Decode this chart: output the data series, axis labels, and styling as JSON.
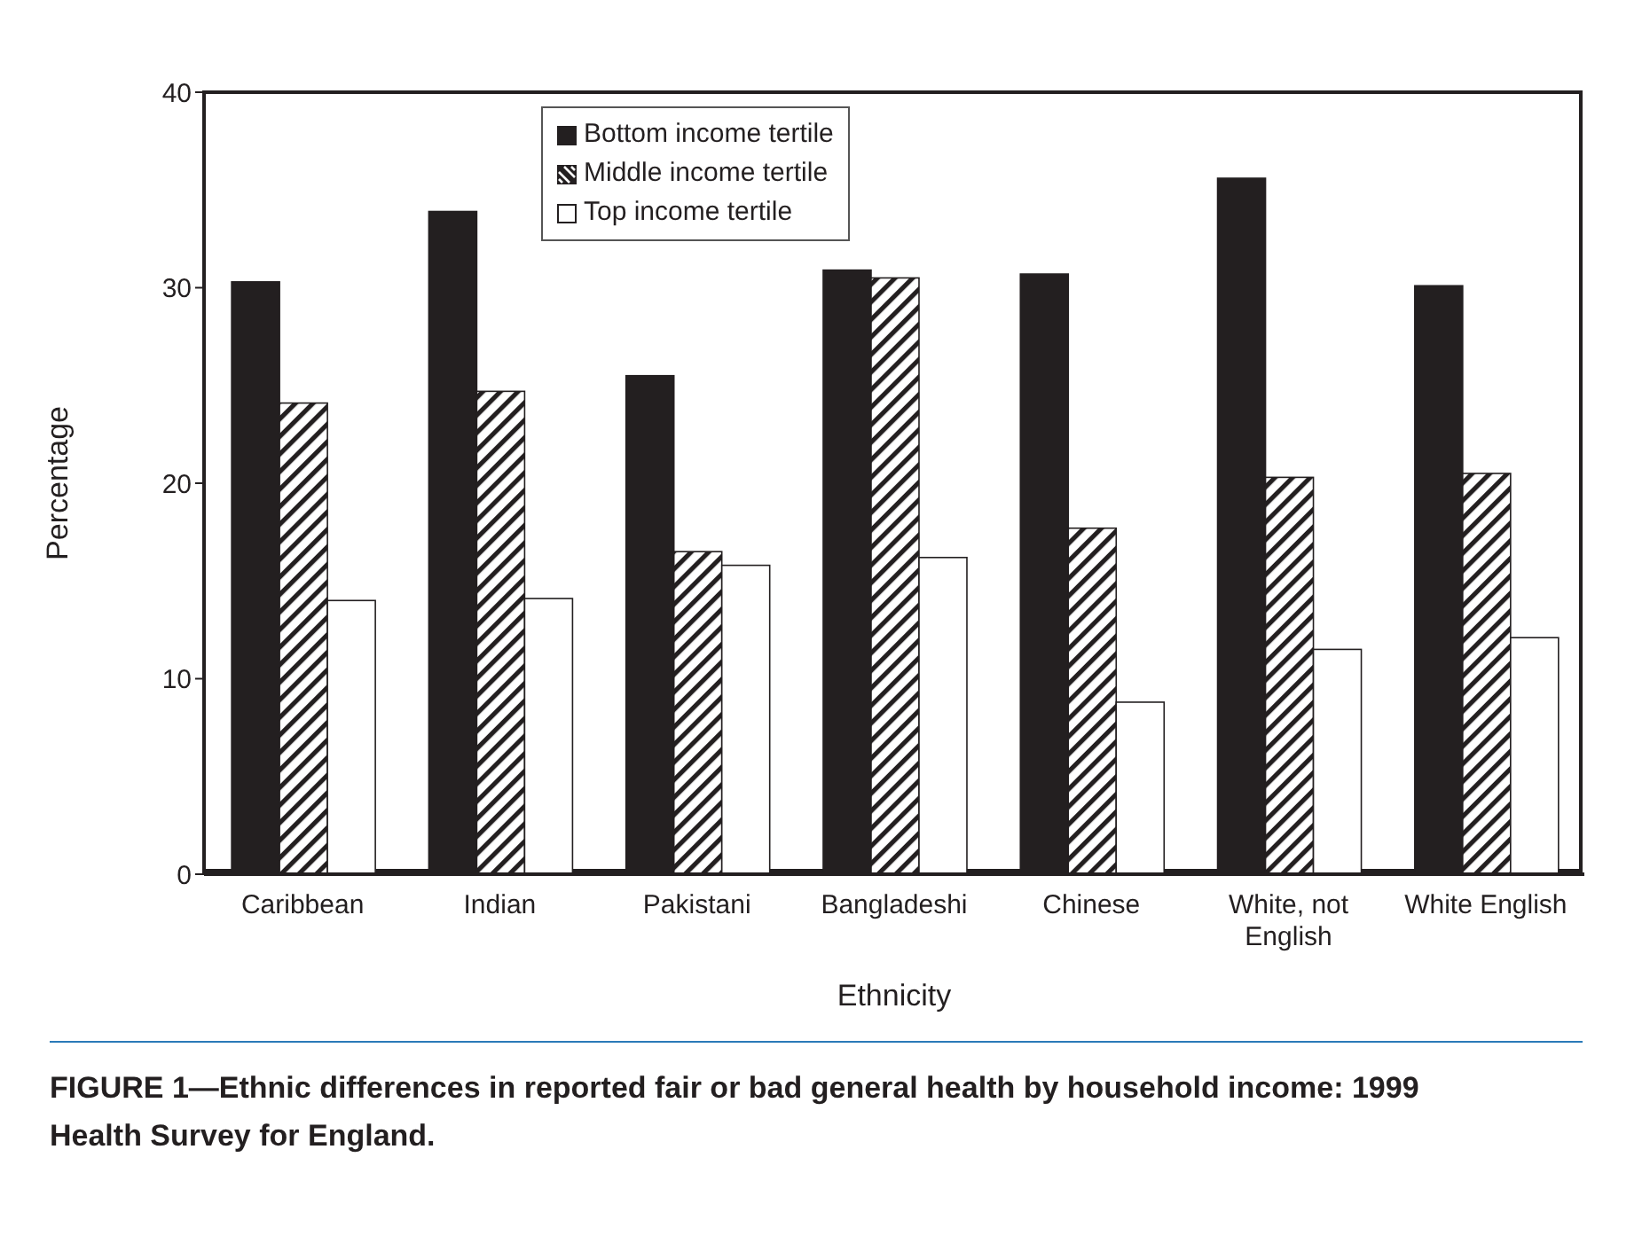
{
  "chart_data": {
    "type": "bar",
    "categories": [
      "Caribbean",
      "Indian",
      "Pakistani",
      "Bangladeshi",
      "Chinese",
      "White, not English",
      "White English"
    ],
    "series": [
      {
        "name": "Bottom income tertile",
        "color": "#231f20",
        "values": [
          30.3,
          33.9,
          25.5,
          30.9,
          30.7,
          35.6,
          30.1
        ]
      },
      {
        "name": "Middle income tertile",
        "color": "#231f20",
        "values": [
          24.1,
          24.7,
          16.5,
          30.5,
          17.7,
          20.3,
          20.5
        ]
      },
      {
        "name": "Top income tertile",
        "color": "#ffffff",
        "values": [
          14.0,
          14.1,
          15.8,
          16.2,
          8.8,
          11.5,
          12.1
        ]
      }
    ],
    "xlabel": "Ethnicity",
    "ylabel": "Percentage",
    "ylim": [
      0,
      40
    ],
    "yticks": [
      0,
      10,
      20,
      30,
      40
    ],
    "grid": false,
    "legend": "top",
    "annotations": [
      "FIGURE 1—Ethnic differences in reported fair or bad general health by household income: 1999 Health Survey for England."
    ]
  }
}
